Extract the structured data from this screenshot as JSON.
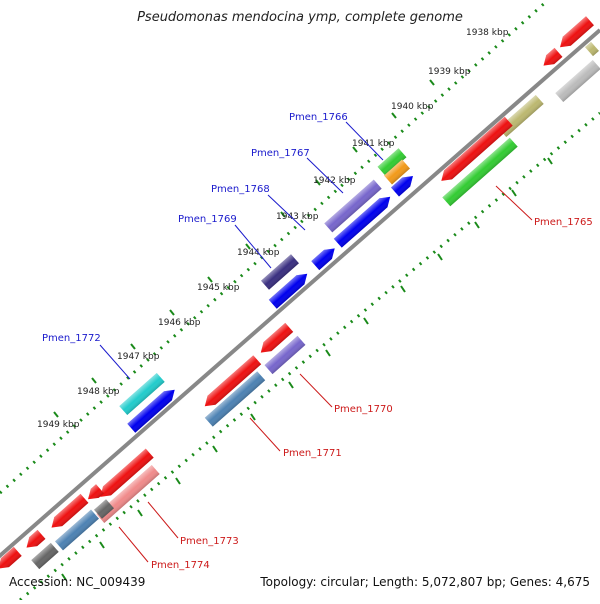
{
  "title": "Pseudomonas mendocina ymp, complete genome",
  "accession_text": "Accession: NC_009439",
  "summary_text": "Topology: circular; Length: 5,072,807 bp; Genes: 4,675",
  "tick_labels": [
    "1938 kbp",
    "1939 kbp",
    "1940 kbp",
    "1941 kbp",
    "1942 kbp",
    "1943 kbp",
    "1944 kbp",
    "1945 kbp",
    "1946 kbp",
    "1947 kbp",
    "1948 kbp",
    "1949 kbp"
  ],
  "gene_labels": {
    "outer": [
      "Pmen_1766",
      "Pmen_1767",
      "Pmen_1768",
      "Pmen_1769",
      "Pmen_1772"
    ],
    "inner": [
      "Pmen_1765",
      "Pmen_1770",
      "Pmen_1771",
      "Pmen_1773",
      "Pmen_1774"
    ]
  },
  "colors": {
    "backbone": "#8a8a8a",
    "ticks": "#1a8a1a",
    "outer_label": "#1a1acc",
    "inner_label": "#cc1a1a",
    "red": "#ee1111",
    "blue": "#0000ee",
    "green": "#33cc33",
    "olive": "#bcb870",
    "gray": "#bbbbbb",
    "dark_gray": "#666666",
    "orange": "#f29a1a",
    "slate": "#7766cc",
    "navy": "#3a2f80",
    "cyan": "#22cccc",
    "steel": "#4d82b3",
    "salmon": "#f08a8a"
  }
}
